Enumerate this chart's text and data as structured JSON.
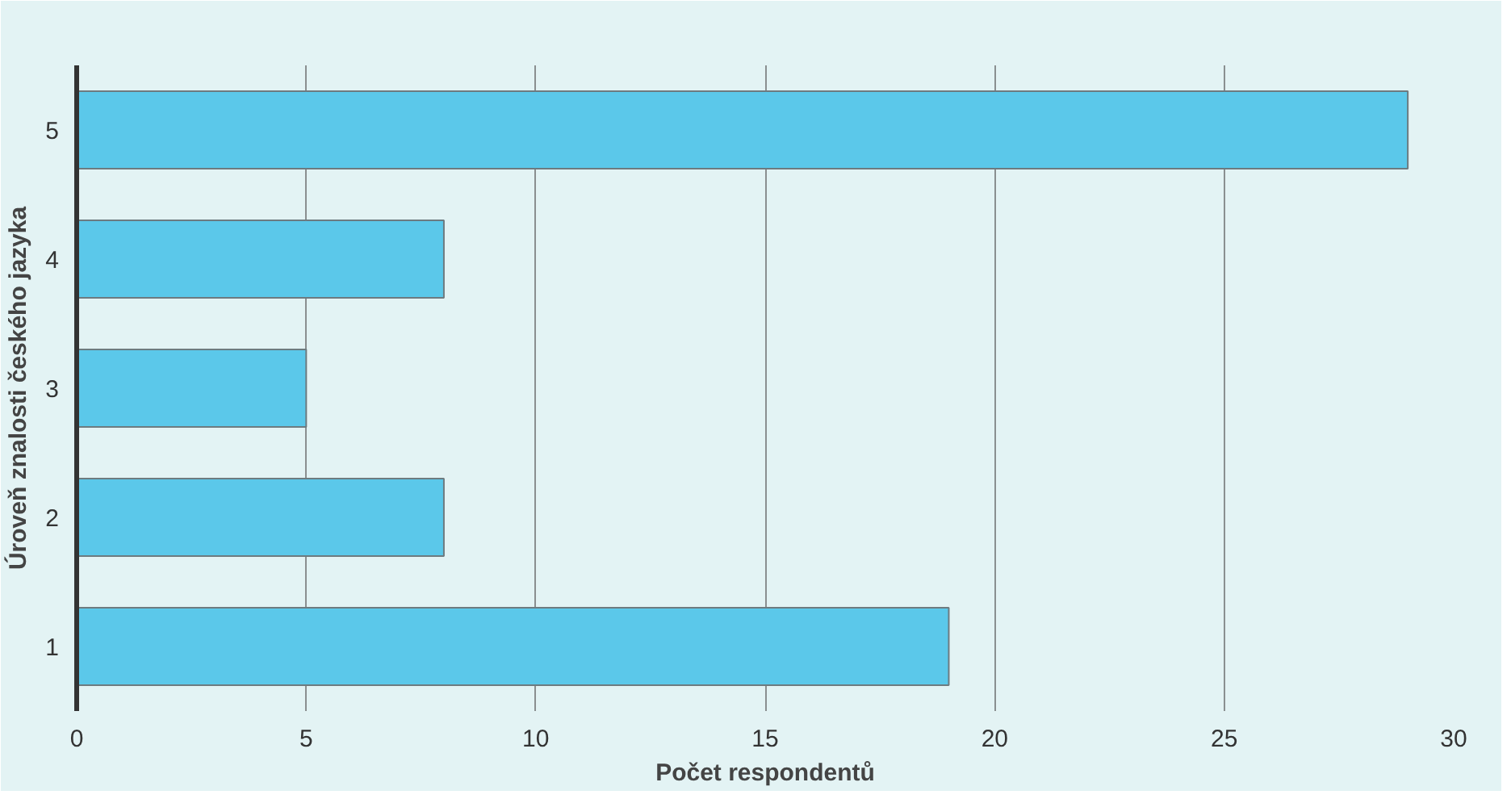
{
  "chart_data": {
    "type": "bar",
    "orientation": "horizontal",
    "xlabel": "Počet respondentů",
    "ylabel": "Úroveň znalosti českého jazyka",
    "categories": [
      "5",
      "4",
      "3",
      "2",
      "1"
    ],
    "values": [
      29,
      8,
      5,
      8,
      19
    ],
    "color": "#5bc8ea",
    "xlim": [
      0,
      30
    ],
    "xticks": [
      0,
      5,
      10,
      15,
      20,
      25,
      30
    ],
    "grid": "x"
  }
}
